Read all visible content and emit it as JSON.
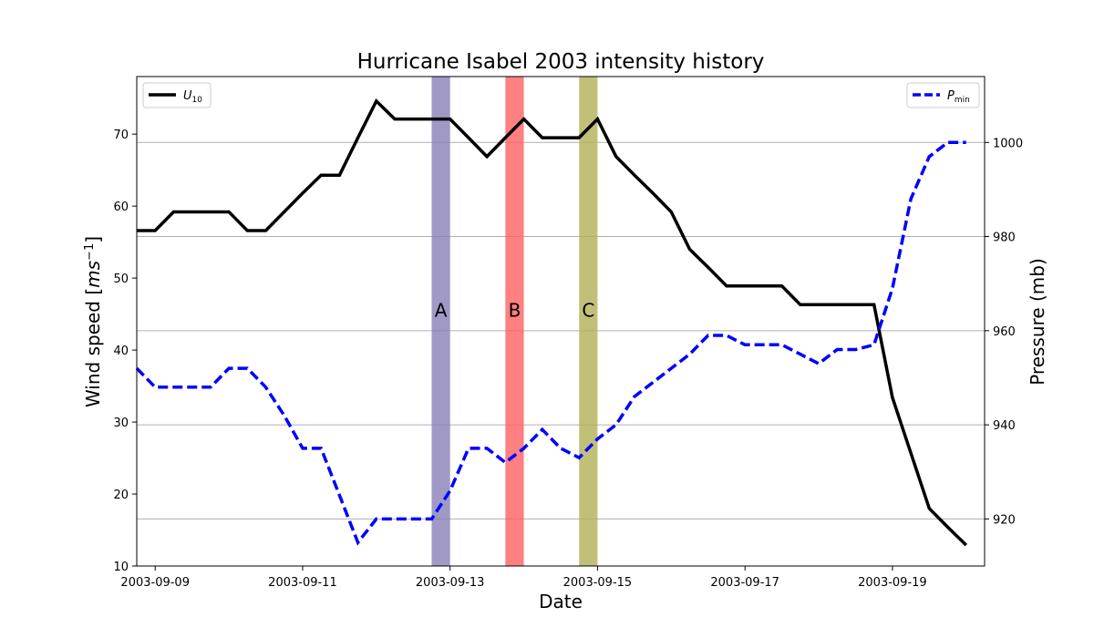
{
  "chart_data": {
    "type": "line",
    "title": "Hurricane Isabel 2003 intensity history",
    "xlabel": "Date",
    "ylabel_left": "Wind speed [ms⁻¹]",
    "ylabel_left_parts": {
      "main": "Wind speed [",
      "italic": "ms",
      "sup": "−1",
      "close": "]"
    },
    "ylabel_right": "Pressure (mb)",
    "xlim": [
      "2003-09-08T18:00",
      "2003-09-20T06:00"
    ],
    "ylim_left": [
      10,
      78
    ],
    "ylim_right": [
      910,
      1014
    ],
    "x_ticks": [
      "2003-09-09",
      "2003-09-11",
      "2003-09-13",
      "2003-09-15",
      "2003-09-17",
      "2003-09-19"
    ],
    "y_ticks_left": [
      10,
      20,
      30,
      40,
      50,
      60,
      70
    ],
    "y_ticks_right": [
      920,
      940,
      960,
      980,
      1000
    ],
    "grid": "right-axis horizontal gridlines",
    "series": [
      {
        "name": "U10",
        "legend_main": "U",
        "legend_sub": "10",
        "axis": "left",
        "color": "#000000",
        "style": "solid",
        "x": [
          "2003-09-08T18:00",
          "2003-09-09T00:00",
          "2003-09-09T06:00",
          "2003-09-09T12:00",
          "2003-09-09T18:00",
          "2003-09-10T00:00",
          "2003-09-10T06:00",
          "2003-09-10T12:00",
          "2003-09-10T18:00",
          "2003-09-11T00:00",
          "2003-09-11T06:00",
          "2003-09-11T12:00",
          "2003-09-11T18:00",
          "2003-09-12T00:00",
          "2003-09-12T06:00",
          "2003-09-12T12:00",
          "2003-09-12T18:00",
          "2003-09-13T00:00",
          "2003-09-13T06:00",
          "2003-09-13T12:00",
          "2003-09-13T18:00",
          "2003-09-14T00:00",
          "2003-09-14T06:00",
          "2003-09-14T12:00",
          "2003-09-14T18:00",
          "2003-09-15T00:00",
          "2003-09-15T06:00",
          "2003-09-15T12:00",
          "2003-09-15T18:00",
          "2003-09-16T00:00",
          "2003-09-16T06:00",
          "2003-09-16T12:00",
          "2003-09-16T18:00",
          "2003-09-17T00:00",
          "2003-09-17T06:00",
          "2003-09-17T12:00",
          "2003-09-17T18:00",
          "2003-09-18T00:00",
          "2003-09-18T06:00",
          "2003-09-18T12:00",
          "2003-09-18T18:00",
          "2003-09-19T00:00",
          "2003-09-19T06:00",
          "2003-09-19T12:00",
          "2003-09-19T18:00",
          "2003-09-20T00:00"
        ],
        "values": [
          56.6,
          56.6,
          59.2,
          59.2,
          59.2,
          59.2,
          56.6,
          56.6,
          59.2,
          61.8,
          64.3,
          64.3,
          69.5,
          74.6,
          72.1,
          72.1,
          72.1,
          72.1,
          69.5,
          66.9,
          69.5,
          72.1,
          69.5,
          69.5,
          69.5,
          72.1,
          66.9,
          64.3,
          61.8,
          59.2,
          54.0,
          51.5,
          48.9,
          48.9,
          48.9,
          48.9,
          46.3,
          46.3,
          46.3,
          46.3,
          46.3,
          33.4,
          25.7,
          18.0,
          15.4,
          12.9
        ]
      },
      {
        "name": "Pmin",
        "legend_main": "P",
        "legend_sub": "min",
        "axis": "right",
        "color": "#0000ff",
        "style": "dashed",
        "x": [
          "2003-09-08T18:00",
          "2003-09-09T00:00",
          "2003-09-09T06:00",
          "2003-09-09T12:00",
          "2003-09-09T18:00",
          "2003-09-10T00:00",
          "2003-09-10T06:00",
          "2003-09-10T12:00",
          "2003-09-10T18:00",
          "2003-09-11T00:00",
          "2003-09-11T06:00",
          "2003-09-11T12:00",
          "2003-09-11T18:00",
          "2003-09-12T00:00",
          "2003-09-12T06:00",
          "2003-09-12T12:00",
          "2003-09-12T18:00",
          "2003-09-13T00:00",
          "2003-09-13T06:00",
          "2003-09-13T12:00",
          "2003-09-13T18:00",
          "2003-09-14T00:00",
          "2003-09-14T06:00",
          "2003-09-14T12:00",
          "2003-09-14T18:00",
          "2003-09-15T00:00",
          "2003-09-15T06:00",
          "2003-09-15T12:00",
          "2003-09-15T18:00",
          "2003-09-16T00:00",
          "2003-09-16T06:00",
          "2003-09-16T12:00",
          "2003-09-16T18:00",
          "2003-09-17T00:00",
          "2003-09-17T06:00",
          "2003-09-17T12:00",
          "2003-09-17T18:00",
          "2003-09-18T00:00",
          "2003-09-18T06:00",
          "2003-09-18T12:00",
          "2003-09-18T18:00",
          "2003-09-19T00:00",
          "2003-09-19T06:00",
          "2003-09-19T12:00",
          "2003-09-19T18:00",
          "2003-09-20T00:00"
        ],
        "values": [
          952,
          948,
          948,
          948,
          948,
          952,
          952,
          948,
          942,
          935,
          935,
          925,
          915,
          920,
          920,
          920,
          920,
          926,
          935,
          935,
          932,
          935,
          939,
          935,
          933,
          937,
          940,
          946,
          949,
          952,
          955,
          959,
          959,
          957,
          957,
          957,
          955,
          953,
          956,
          956,
          957,
          969,
          988,
          997,
          1000,
          1000
        ]
      }
    ],
    "legends": [
      {
        "series": "U10",
        "placement": "upper-left"
      },
      {
        "series": "Pmin",
        "placement": "upper-right"
      }
    ],
    "shaded_bands": [
      {
        "label": "A",
        "start": "2003-09-12T18:00",
        "end": "2003-09-13T00:00",
        "color": "#8880b8"
      },
      {
        "label": "B",
        "start": "2003-09-13T18:00",
        "end": "2003-09-14T00:00",
        "color": "#ff6060"
      },
      {
        "label": "C",
        "start": "2003-09-14T18:00",
        "end": "2003-09-15T00:00",
        "color": "#b0b058"
      }
    ],
    "band_label_y": 45.5
  }
}
